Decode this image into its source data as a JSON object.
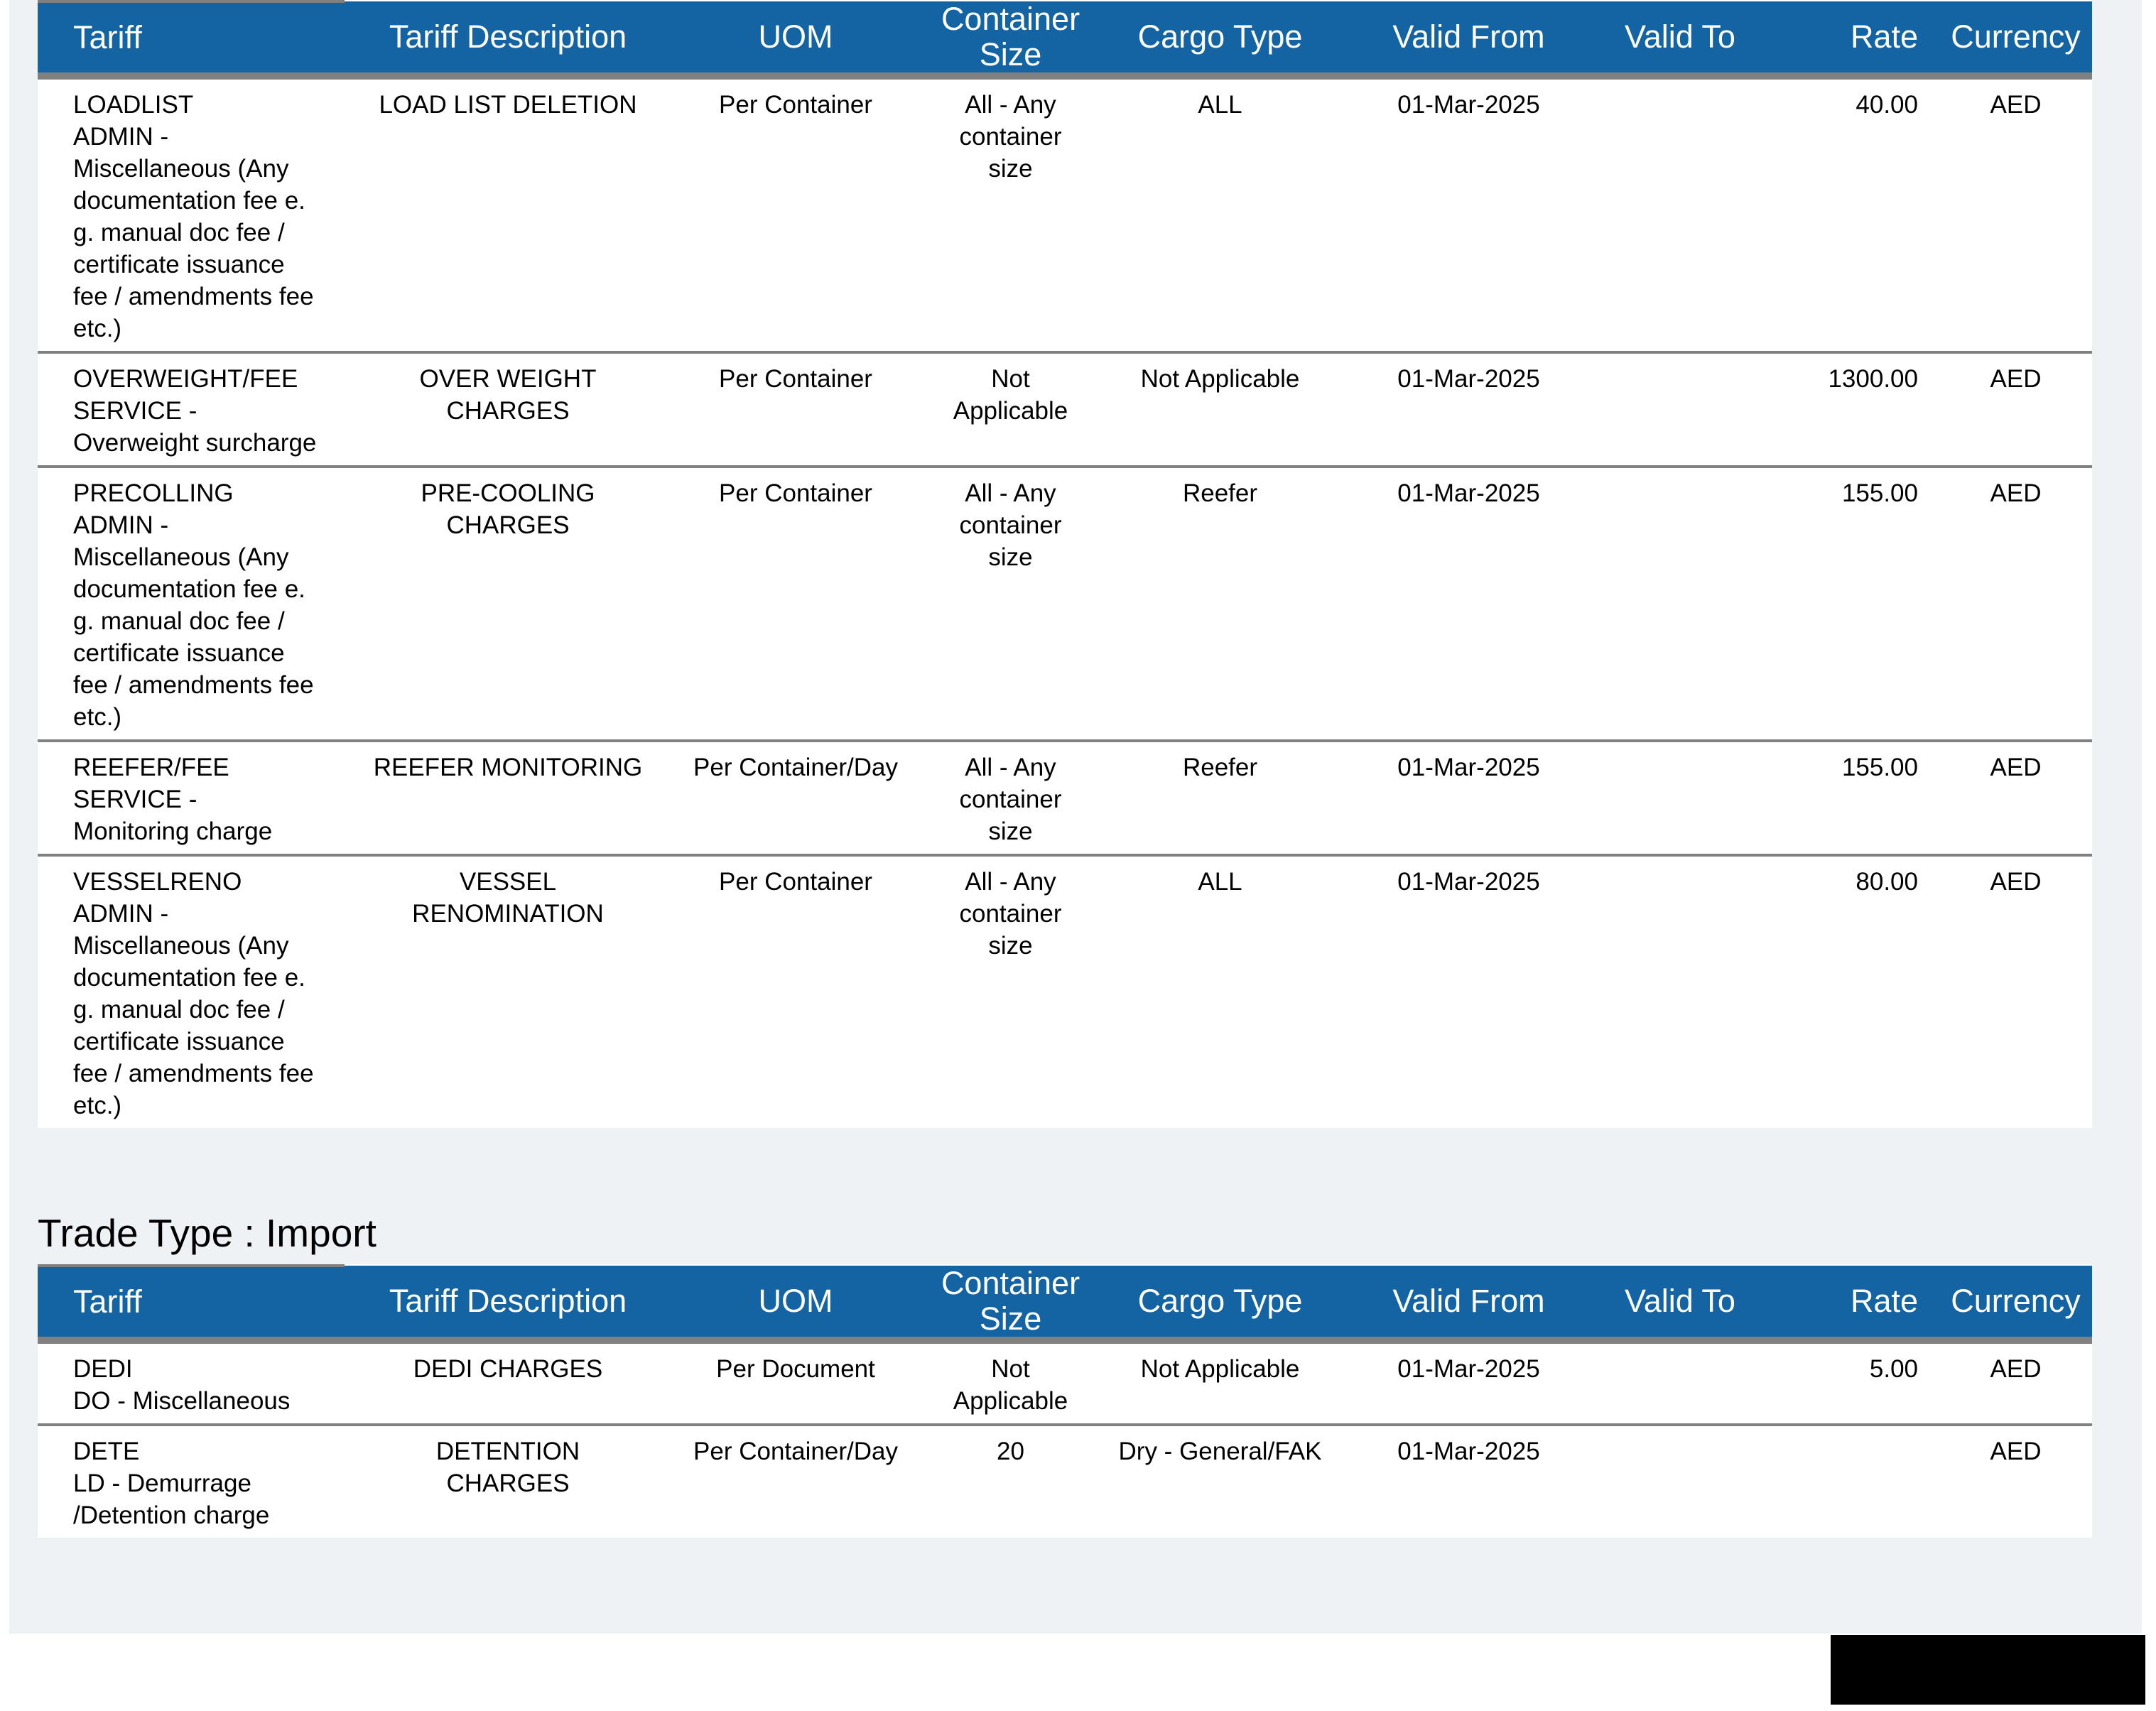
{
  "colors": {
    "header_blue": "#1464a4",
    "border_gray": "#808080",
    "page_bg": "#eff2f4",
    "header_text": "#ffffff",
    "body_text": "#000000",
    "redaction_black": "#000000"
  },
  "columns": [
    "Tariff",
    "Tariff Description",
    "UOM",
    "Container\nSize",
    "Cargo Type",
    "Valid From",
    "Valid To",
    "Rate",
    "Currency"
  ],
  "table1": {
    "rows": [
      [
        "LOADLIST\nADMIN -\nMiscellaneous (Any\ndocumentation fee e.\ng. manual doc fee /\ncertificate issuance\nfee / amendments fee\netc.)",
        "LOAD LIST DELETION",
        "Per Container",
        "All - Any\ncontainer\nsize",
        "ALL",
        "01-Mar-2025",
        "",
        "40.00",
        "AED"
      ],
      [
        "OVERWEIGHT/FEE\nSERVICE -\nOverweight surcharge",
        "OVER WEIGHT\nCHARGES",
        "Per Container",
        "Not\nApplicable",
        "Not Applicable",
        "01-Mar-2025",
        "",
        "1300.00",
        "AED"
      ],
      [
        "PRECOLLING\nADMIN -\nMiscellaneous (Any\ndocumentation fee e.\ng. manual doc fee /\ncertificate issuance\nfee / amendments fee\netc.)",
        "PRE-COOLING\nCHARGES",
        "Per Container",
        "All - Any\ncontainer\nsize",
        "Reefer",
        "01-Mar-2025",
        "",
        "155.00",
        "AED"
      ],
      [
        "REEFER/FEE\nSERVICE -\nMonitoring charge",
        "REEFER MONITORING",
        "Per Container/Day",
        "All - Any\ncontainer\nsize",
        "Reefer",
        "01-Mar-2025",
        "",
        "155.00",
        "AED"
      ],
      [
        "VESSELRENO\nADMIN -\nMiscellaneous (Any\ndocumentation fee e.\ng. manual doc fee /\ncertificate issuance\nfee / amendments fee\netc.)",
        "VESSEL\nRENOMINATION",
        "Per Container",
        "All - Any\ncontainer\nsize",
        "ALL",
        "01-Mar-2025",
        "",
        "80.00",
        "AED"
      ]
    ]
  },
  "section_import": {
    "title": "Trade Type : Import"
  },
  "table2": {
    "rows": [
      [
        "DEDI\nDO - Miscellaneous",
        "DEDI CHARGES",
        "Per Document",
        "Not\nApplicable",
        "Not Applicable",
        "01-Mar-2025",
        "",
        "5.00",
        "AED"
      ],
      [
        "DETE\nLD - Demurrage\n/Detention charge",
        "DETENTION\nCHARGES",
        "Per Container/Day",
        "20",
        "Dry - General/FAK",
        "01-Mar-2025",
        "",
        "",
        "AED"
      ]
    ]
  }
}
